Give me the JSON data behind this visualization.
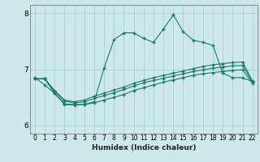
{
  "xlabel": "Humidex (Indice chaleur)",
  "background_color": "#cce8e8",
  "grid_color": "#aad4d4",
  "line_color": "#1a7a6a",
  "xlim": [
    -0.5,
    22.5
  ],
  "ylim": [
    5.85,
    8.15
  ],
  "yticks": [
    6,
    7,
    8
  ],
  "xticks": [
    0,
    1,
    2,
    3,
    4,
    5,
    6,
    7,
    8,
    9,
    10,
    11,
    12,
    13,
    14,
    15,
    16,
    17,
    18,
    19,
    20,
    21,
    22
  ],
  "series": [
    {
      "x": [
        0,
        1,
        2,
        3,
        4,
        5,
        6,
        7,
        8,
        9,
        10,
        11,
        12,
        13,
        14,
        15,
        16,
        17,
        18,
        19,
        20,
        21,
        22
      ],
      "y": [
        6.85,
        6.72,
        6.57,
        6.38,
        6.37,
        6.37,
        6.42,
        7.02,
        7.53,
        7.65,
        7.65,
        7.55,
        7.48,
        7.72,
        7.97,
        7.67,
        7.52,
        7.48,
        7.43,
        6.93,
        6.85,
        6.85,
        6.78
      ]
    },
    {
      "x": [
        0,
        1,
        2,
        3,
        4,
        5,
        6,
        7,
        8,
        9,
        10,
        11,
        12,
        13,
        14,
        15,
        16,
        17,
        18,
        19,
        20,
        21,
        22
      ],
      "y": [
        6.83,
        6.83,
        6.62,
        6.45,
        6.42,
        6.45,
        6.52,
        6.57,
        6.63,
        6.68,
        6.75,
        6.8,
        6.85,
        6.89,
        6.93,
        6.97,
        7.01,
        7.05,
        7.08,
        7.1,
        7.12,
        7.13,
        6.79
      ]
    },
    {
      "x": [
        0,
        1,
        2,
        3,
        4,
        5,
        6,
        7,
        8,
        9,
        10,
        11,
        12,
        13,
        14,
        15,
        16,
        17,
        18,
        19,
        20,
        21,
        22
      ],
      "y": [
        6.83,
        6.83,
        6.6,
        6.43,
        6.4,
        6.42,
        6.48,
        6.53,
        6.58,
        6.64,
        6.7,
        6.76,
        6.8,
        6.84,
        6.88,
        6.92,
        6.96,
        6.99,
        7.02,
        7.04,
        7.06,
        7.07,
        6.77
      ]
    },
    {
      "x": [
        0,
        1,
        2,
        3,
        4,
        5,
        6,
        7,
        8,
        9,
        10,
        11,
        12,
        13,
        14,
        15,
        16,
        17,
        18,
        19,
        20,
        21,
        22
      ],
      "y": [
        6.83,
        6.83,
        6.57,
        6.37,
        6.36,
        6.37,
        6.4,
        6.45,
        6.5,
        6.55,
        6.62,
        6.67,
        6.72,
        6.77,
        6.81,
        6.85,
        6.89,
        6.92,
        6.94,
        6.96,
        6.98,
        6.99,
        6.75
      ]
    }
  ]
}
